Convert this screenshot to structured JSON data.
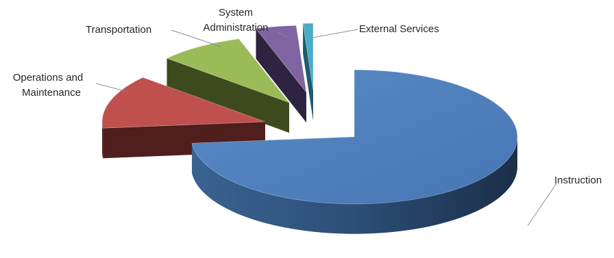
{
  "chart_data": {
    "type": "pie",
    "style": "3d-exploded",
    "title": "",
    "legend": "none",
    "slices": [
      {
        "name": "Instruction",
        "value": 73.5,
        "color": "#4f81bd"
      },
      {
        "name": "Operations and Maintenance",
        "value": 13.0,
        "color": "#c0504d"
      },
      {
        "name": "Transportation",
        "value": 8.5,
        "color": "#9bbb59"
      },
      {
        "name": "System Administration",
        "value": 4.0,
        "color": "#8064a2"
      },
      {
        "name": "External Services",
        "value": 1.0,
        "color": "#4bacc6"
      }
    ],
    "labels": {
      "instruction": "Instruction",
      "operations_line1": "Operations and",
      "operations_line2": "Maintenance",
      "transportation": "Transportation",
      "sysadmin_line1": "System",
      "sysadmin_line2": "Administration",
      "external": "External Services"
    }
  }
}
